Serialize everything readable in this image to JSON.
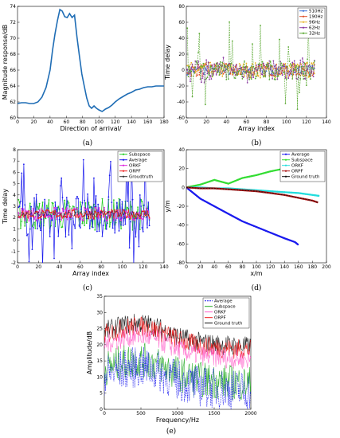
{
  "chart_data": [
    {
      "id": "a",
      "caption": "(a)",
      "type": "line",
      "xlabel": "Direction of arrival/",
      "ylabel": "Magnitude response/dB",
      "xlim": [
        0,
        180
      ],
      "ylim": [
        60,
        74
      ],
      "xticks": [
        0,
        20,
        40,
        60,
        80,
        100,
        120,
        140,
        160,
        180
      ],
      "yticks": [
        60,
        62,
        64,
        66,
        68,
        70,
        72,
        74
      ],
      "series": [
        {
          "color": "#1f6db5",
          "x": [
            0,
            5,
            10,
            15,
            20,
            25,
            30,
            35,
            40,
            43,
            46,
            49,
            52,
            55,
            58,
            61,
            64,
            67,
            70,
            73,
            76,
            79,
            82,
            85,
            88,
            91,
            94,
            97,
            100,
            104,
            108,
            112,
            116,
            120,
            125,
            130,
            135,
            140,
            145,
            150,
            155,
            160,
            165,
            170,
            175,
            180
          ],
          "y": [
            61.8,
            61.9,
            61.9,
            61.8,
            61.8,
            62.0,
            62.6,
            63.8,
            66.0,
            68.5,
            70.5,
            72.2,
            73.6,
            73.4,
            72.7,
            72.6,
            73.1,
            72.6,
            72.9,
            70.2,
            67.8,
            65.5,
            64.0,
            62.5,
            61.5,
            61.2,
            61.5,
            61.2,
            61.0,
            60.8,
            61.1,
            61.3,
            61.6,
            62.0,
            62.4,
            62.7,
            63.0,
            63.2,
            63.5,
            63.6,
            63.8,
            63.9,
            63.9,
            64.0,
            64.0,
            64.0
          ]
        }
      ]
    },
    {
      "id": "b",
      "caption": "(b)",
      "type": "line",
      "xlabel": "Array index",
      "ylabel": "Time delay",
      "xlim": [
        0,
        140
      ],
      "ylim": [
        -60,
        80
      ],
      "xticks": [
        0,
        20,
        40,
        60,
        80,
        100,
        120,
        140
      ],
      "yticks": [
        -60,
        -40,
        -20,
        0,
        20,
        40,
        60,
        80
      ],
      "legend_position": "top-right",
      "n_points": 128,
      "series": [
        {
          "name": "510Hz",
          "color": "#3a6fd6",
          "amp": 6,
          "spike_amp": 0
        },
        {
          "name": "190Hz",
          "color": "#e0502a",
          "amp": 8,
          "spike_amp": 0
        },
        {
          "name": "96Hz",
          "color": "#e7b52a",
          "amp": 10,
          "spike_amp": 0
        },
        {
          "name": "62Hz",
          "color": "#8a3aa0",
          "amp": 12,
          "spike_amp": 20
        },
        {
          "name": "32Hz",
          "color": "#5aa832",
          "amp": 12,
          "spike_amp": 60
        }
      ]
    },
    {
      "id": "c",
      "caption": "(c)",
      "type": "line",
      "xlabel": "Array index",
      "ylabel": "Time delay",
      "xlim": [
        0,
        140
      ],
      "ylim": [
        -2,
        8
      ],
      "xticks": [
        0,
        20,
        40,
        60,
        80,
        100,
        120,
        140
      ],
      "yticks": [
        -2,
        -1,
        0,
        1,
        2,
        3,
        4,
        5,
        6,
        7,
        8
      ],
      "legend_position": "top-right",
      "n_points": 126,
      "series": [
        {
          "name": "Subspace",
          "color": "#22cc22",
          "center": 2.3,
          "amp": 1.4
        },
        {
          "name": "Average",
          "color": "#1a1aee",
          "center": 2.2,
          "amp": 3.2
        },
        {
          "name": "ORKF",
          "color": "#dd22dd",
          "center": 2.3,
          "amp": 0.6
        },
        {
          "name": "ORPF",
          "color": "#ee2222",
          "center": 2.3,
          "amp": 0.4
        },
        {
          "name": "Groudtruth",
          "color": "#333333",
          "center": 2.3,
          "amp": 0.3
        }
      ]
    },
    {
      "id": "d",
      "caption": "(d)",
      "type": "line",
      "xlabel": "x/m",
      "ylabel": "y/m",
      "xlim": [
        0,
        200
      ],
      "ylim": [
        -80,
        40
      ],
      "xticks": [
        0,
        20,
        40,
        60,
        80,
        100,
        120,
        140,
        160,
        180,
        200
      ],
      "yticks": [
        -80,
        -60,
        -40,
        -20,
        0,
        20,
        40
      ],
      "legend_position": "top-right",
      "series": [
        {
          "name": "Average",
          "color": "#1a1aee",
          "x": [
            0,
            10,
            20,
            40,
            60,
            80,
            100,
            120,
            140,
            155,
            160
          ],
          "y": [
            0,
            -6,
            -12,
            -20,
            -28,
            -36,
            -42,
            -48,
            -54,
            -58,
            -61
          ]
        },
        {
          "name": "Subspace",
          "color": "#33dd33",
          "x": [
            0,
            20,
            40,
            60,
            80,
            100,
            120,
            140,
            160,
            180,
            185
          ],
          "y": [
            0,
            3,
            8,
            4,
            10,
            13,
            17,
            20,
            22,
            24,
            25
          ]
        },
        {
          "name": "ORKF",
          "color": "#22dddd",
          "x": [
            0,
            20,
            40,
            60,
            80,
            100,
            120,
            140,
            160,
            180,
            190
          ],
          "y": [
            0,
            0,
            -1,
            -1,
            -2,
            -3,
            -4,
            -5,
            -6,
            -8,
            -9
          ]
        },
        {
          "name": "ORPF",
          "color": "#aa1111",
          "x": [
            0,
            20,
            40,
            60,
            80,
            100,
            120,
            140,
            160,
            180,
            188
          ],
          "y": [
            0,
            -1,
            -1,
            -2,
            -3,
            -4,
            -6,
            -8,
            -11,
            -14,
            -16
          ]
        },
        {
          "name": "Ground truth",
          "color": "#111111",
          "x": [
            0,
            20,
            40,
            60,
            80,
            100,
            120,
            140,
            160,
            180,
            188
          ],
          "y": [
            0,
            -1,
            -1,
            -2,
            -3,
            -4,
            -6,
            -8,
            -11,
            -14,
            -16
          ]
        }
      ]
    },
    {
      "id": "e",
      "caption": "(e)",
      "type": "line",
      "xlabel": "Frequency/Hz",
      "ylabel": "Amplitude/dB",
      "xlim": [
        0,
        2000
      ],
      "ylim": [
        0,
        35
      ],
      "xticks": [
        0,
        500,
        1000,
        1500,
        2000
      ],
      "yticks": [
        0,
        5,
        10,
        15,
        20,
        25,
        30,
        35
      ],
      "legend_position": "top-right",
      "n_points": 260,
      "series": [
        {
          "name": "Average",
          "color": "#1a1aee",
          "style": "dashed",
          "level": 10,
          "noise": 8
        },
        {
          "name": "Subspace",
          "color": "#22aa22",
          "style": "solid",
          "level": 12,
          "noise": 7
        },
        {
          "name": "ORKF",
          "color": "#ff66cc",
          "style": "solid",
          "level": 19,
          "noise": 4
        },
        {
          "name": "ORPF",
          "color": "#ee1111",
          "style": "solid",
          "level": 22,
          "noise": 4
        },
        {
          "name": "Ground truth",
          "color": "#111111",
          "style": "solid",
          "level": 23,
          "noise": 4
        }
      ]
    }
  ]
}
